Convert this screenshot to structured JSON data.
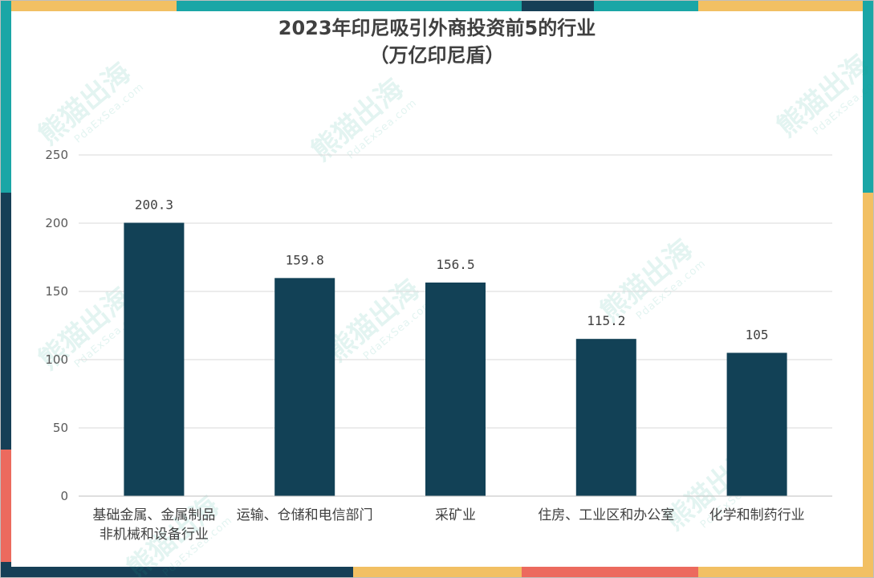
{
  "chart_data": {
    "type": "bar",
    "title": "2023年印尼吸引外商投资前5的行业",
    "subtitle": "（万亿印尼盾）",
    "categories": [
      [
        "基础金属、金属制品",
        "非机械和设备行业"
      ],
      [
        "运输、仓储和电信部门"
      ],
      [
        "采矿业"
      ],
      [
        "住房、工业区和办公室"
      ],
      [
        "化学和制药行业"
      ]
    ],
    "values": [
      200.3,
      159.8,
      156.5,
      115.2,
      105
    ],
    "data_labels": [
      "200.3",
      "159.8",
      "156.5",
      "115.2",
      "105"
    ],
    "y_ticks": [
      0,
      50,
      100,
      150,
      200,
      250
    ],
    "ylim": [
      0,
      250
    ],
    "grid": true,
    "legend": "none",
    "bar_color": "#124156"
  },
  "watermark": {
    "text": "熊猫出海",
    "sub": "PdaExSea.com"
  },
  "colors": {
    "teal": "#1aa6a6",
    "yellow": "#f2c063",
    "dark": "#163f56",
    "coral": "#ec6a5e"
  }
}
